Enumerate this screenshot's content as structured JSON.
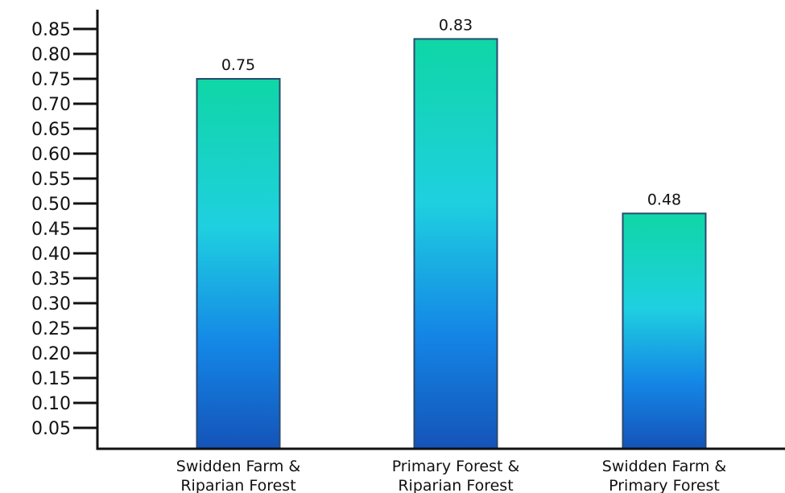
{
  "chart_data": {
    "type": "bar",
    "categories": [
      [
        "Swidden Farm &",
        "Riparian Forest"
      ],
      [
        "Primary Forest &",
        "Riparian Forest"
      ],
      [
        "Swidden Farm &",
        "Primary Forest"
      ]
    ],
    "values": [
      0.75,
      0.83,
      0.48
    ],
    "data_labels": [
      "0.75",
      "0.83",
      "0.48"
    ],
    "yticks": [
      "0.05",
      "0.10",
      "0.15",
      "0.20",
      "0.25",
      "0.30",
      "0.35",
      "0.40",
      "0.45",
      "0.50",
      "0.55",
      "0.60",
      "0.65",
      "0.70",
      "0.75",
      "0.80",
      "0.85"
    ],
    "ylim": [
      0,
      0.85
    ],
    "title": "",
    "xlabel": "",
    "ylabel": "",
    "grid": false,
    "colors": {
      "bar_top": "#0fd6a6",
      "bar_mid": "#1fd0e0",
      "bar_low": "#1486e6",
      "bar_bottom": "#1553b8",
      "bar_stroke": "#2a4a6e",
      "axis": "#111111"
    }
  }
}
